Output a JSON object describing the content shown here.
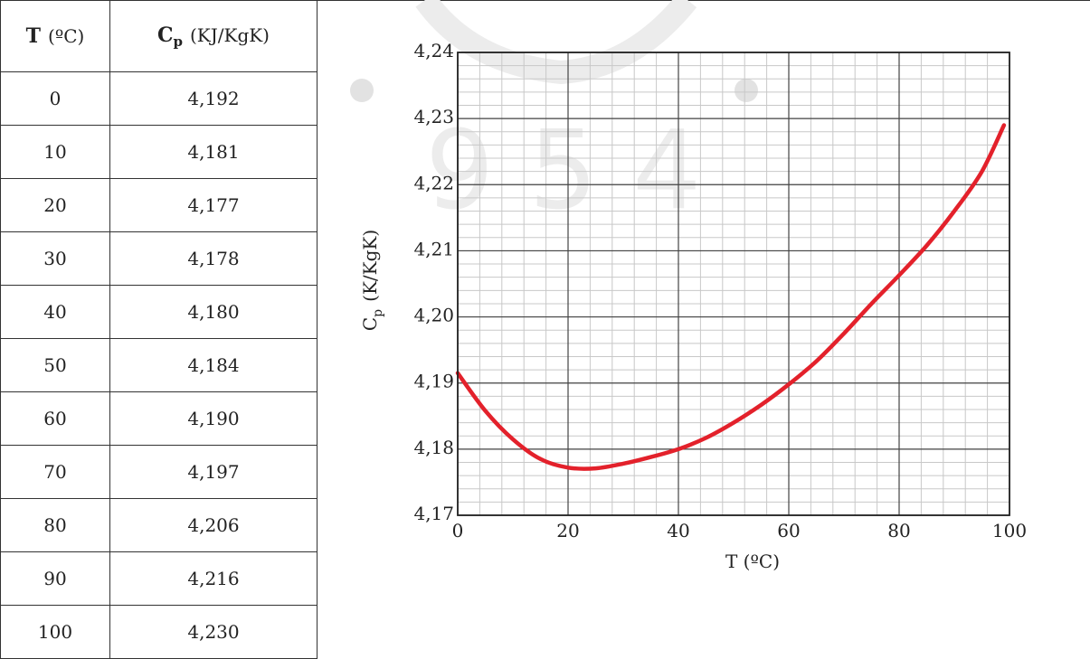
{
  "table": {
    "header": {
      "t_symbol": "T",
      "t_unit": "(ºC)",
      "cp_symbol": "C",
      "cp_sub": "p",
      "cp_unit": "(KJ/KgK)"
    },
    "rows": [
      {
        "t": "0",
        "cp": "4,192"
      },
      {
        "t": "10",
        "cp": "4,181"
      },
      {
        "t": "20",
        "cp": "4,177"
      },
      {
        "t": "30",
        "cp": "4,178"
      },
      {
        "t": "40",
        "cp": "4,180"
      },
      {
        "t": "50",
        "cp": "4,184"
      },
      {
        "t": "60",
        "cp": "4,190"
      },
      {
        "t": "70",
        "cp": "4,197"
      },
      {
        "t": "80",
        "cp": "4,206"
      },
      {
        "t": "90",
        "cp": "4,216"
      },
      {
        "t": "100",
        "cp": "4,230"
      }
    ]
  },
  "chart_data": {
    "type": "line",
    "title": "",
    "xlabel": "T (ºC)",
    "ylabel_symbol": "C",
    "ylabel_sub": "p",
    "ylabel_unit": "(K/KgK)",
    "xlim": [
      0,
      100
    ],
    "ylim": [
      4.17,
      4.24
    ],
    "x_ticks": [
      {
        "value": 0,
        "label": "0"
      },
      {
        "value": 20,
        "label": "20"
      },
      {
        "value": 40,
        "label": "40"
      },
      {
        "value": 60,
        "label": "60"
      },
      {
        "value": 80,
        "label": "80"
      },
      {
        "value": 100,
        "label": "100"
      }
    ],
    "y_ticks": [
      {
        "value": 4.17,
        "label": "4,17"
      },
      {
        "value": 4.18,
        "label": "4,18"
      },
      {
        "value": 4.19,
        "label": "4,19"
      },
      {
        "value": 4.2,
        "label": "4,20"
      },
      {
        "value": 4.21,
        "label": "4,21"
      },
      {
        "value": 4.22,
        "label": "4,22"
      },
      {
        "value": 4.23,
        "label": "4,23"
      },
      {
        "value": 4.24,
        "label": "4,24"
      }
    ],
    "grid": true,
    "legend": "none",
    "series": [
      {
        "color": "#e3212b",
        "x": [
          0,
          5,
          10,
          15,
          20,
          25,
          30,
          35,
          40,
          45,
          50,
          55,
          60,
          65,
          70,
          75,
          80,
          85,
          90,
          95,
          99
        ],
        "values": [
          4.1915,
          4.1858,
          4.1815,
          4.1785,
          4.1772,
          4.1771,
          4.1778,
          4.1788,
          4.18,
          4.1817,
          4.184,
          4.1867,
          4.1898,
          4.1933,
          4.1975,
          4.202,
          4.2063,
          4.2108,
          4.216,
          4.222,
          4.229
        ]
      }
    ],
    "colors": {
      "grid_major": "#444444",
      "grid_minor": "#c8c8c8",
      "axis": "#222222"
    }
  }
}
